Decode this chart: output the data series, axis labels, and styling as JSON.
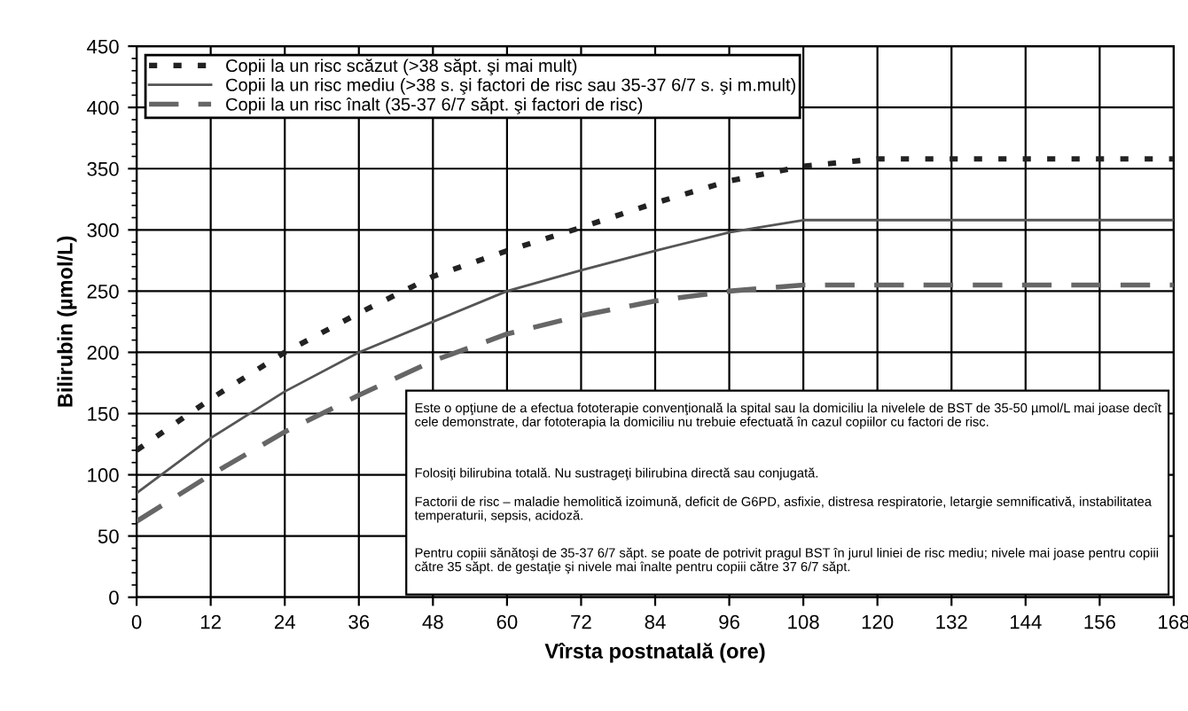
{
  "chart_data": {
    "type": "line",
    "xlabel": "Vîrsta postnatală (ore)",
    "ylabel": "Bilirubin (µmol/L)",
    "x": [
      0,
      12,
      24,
      36,
      48,
      60,
      72,
      84,
      96,
      108,
      120,
      132,
      144,
      156,
      168
    ],
    "series": [
      {
        "name": "Copii la un risc scăzut (>38 săpt. şi mai mult)",
        "color": "#222222",
        "line_style": "dotted",
        "values": [
          120,
          162,
          200,
          232,
          262,
          283,
          302,
          322,
          340,
          352,
          358,
          358,
          358,
          358,
          358
        ]
      },
      {
        "name": "Copii la un risc mediu (>38 s. şi factori de risc sau 35-37 6/7 s. şi m.mult)",
        "color": "#555555",
        "line_style": "solid",
        "values": [
          85,
          130,
          168,
          200,
          225,
          250,
          267,
          283,
          298,
          308,
          308,
          308,
          308,
          308,
          308
        ]
      },
      {
        "name": "Copii la un risc înalt (35-37 6/7 săpt. şi factori de risc)",
        "color": "#666666",
        "line_style": "dashed",
        "values": [
          62,
          100,
          135,
          165,
          193,
          215,
          230,
          242,
          250,
          255,
          255,
          255,
          255,
          255,
          255
        ]
      }
    ],
    "xlim": [
      0,
      168
    ],
    "xticks": [
      0,
      12,
      24,
      36,
      48,
      60,
      72,
      84,
      96,
      108,
      120,
      132,
      144,
      156,
      168
    ],
    "ylim": [
      0,
      450
    ],
    "yticks": [
      0,
      50,
      100,
      150,
      200,
      250,
      300,
      350,
      400,
      450
    ],
    "grid": true,
    "legend": "top left",
    "marker": "none",
    "annotations": [
      "Este o opţiune de a efectua fototerapie convenţională la spital sau la domiciliu la nivelele de BST de 35-50 µmol/L mai joase decît cele demonstrate, dar fototerapia la domiciliu nu trebuie efectuată în cazul copiilor cu factori de risc.",
      "Folosiţi bilirubina totală. Nu sustrageţi bilirubina directă sau conjugată.",
      "Factorii de risc – maladie hemolitică izoimună, deficit de G6PD, asfixie, distresa respiratorie, letargie semnificativă, instabilitatea temperaturii, sepsis, acidoză.",
      "Pentru copiii sănătoşi de 35-37 6/7 săpt. se poate de potrivit pragul BST în jurul liniei de risc mediu; nivele mai joase pentru copiii către 35 săpt. de gestaţie şi nivele mai înalte pentru copiii către 37 6/7 săpt."
    ]
  }
}
